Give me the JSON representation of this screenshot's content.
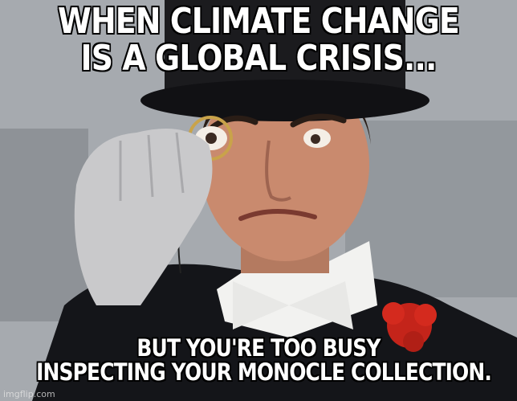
{
  "meme": {
    "top_text": [
      "WHEN CLIMATE CHANGE",
      "IS A GLOBAL CRISIS..."
    ],
    "bottom_text": [
      "BUT YOU'RE TOO BUSY",
      "INSPECTING YOUR MONOCLE COLLECTION."
    ],
    "watermark": "imgflip.com"
  },
  "scene": {
    "subject": "man-in-top-hat-holding-monocle",
    "colors": {
      "top_hat": "#1b1b1e",
      "skin": "#c98a6e",
      "glove": "#c9c9cb",
      "coat": "#141519",
      "shirt": "#f2f2f0",
      "carnation": "#d42a1e",
      "background": "#9ea3a8"
    }
  }
}
